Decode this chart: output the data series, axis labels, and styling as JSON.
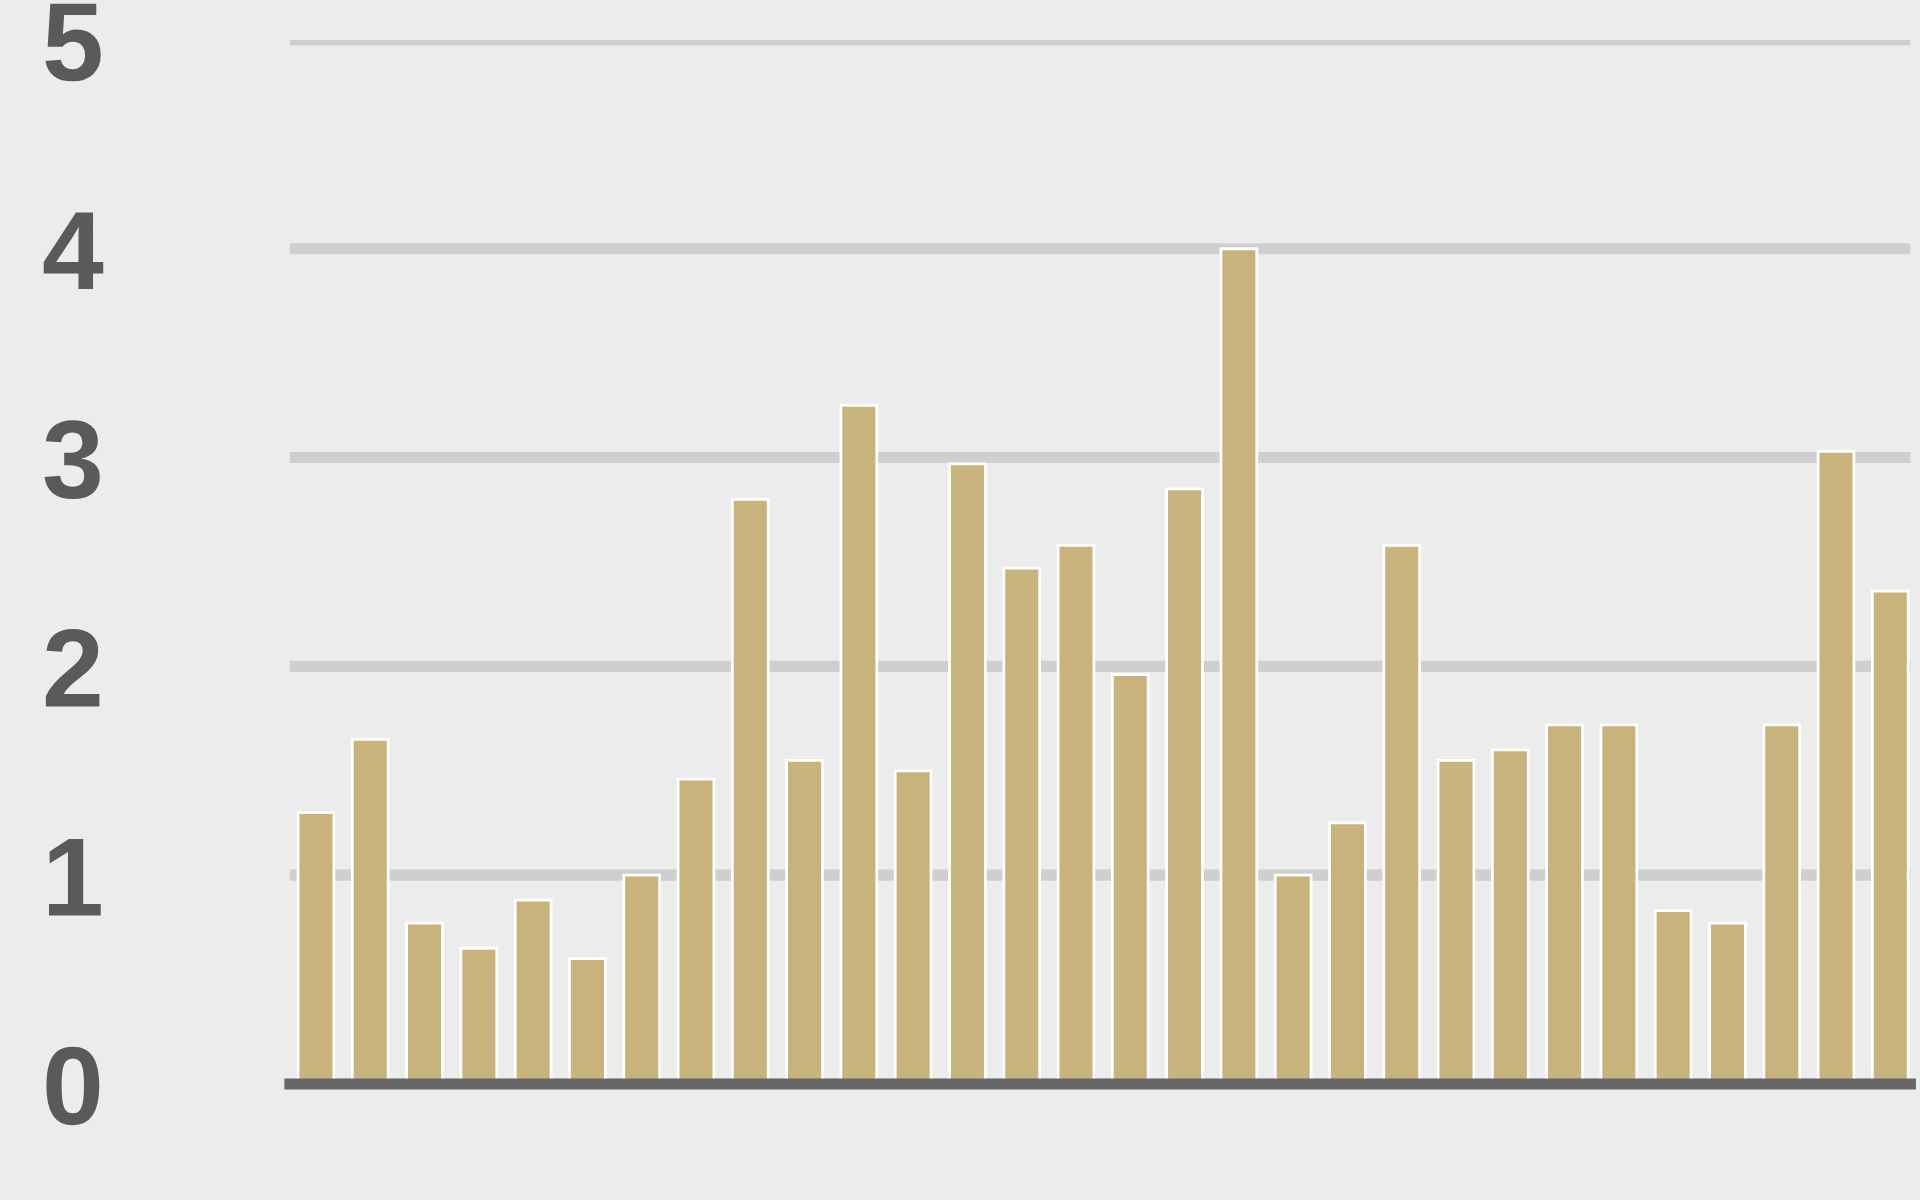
{
  "chart_data": {
    "type": "bar",
    "categories": [
      null,
      null,
      null,
      null,
      null,
      null,
      null,
      null,
      null,
      null,
      null,
      null,
      null,
      null,
      null,
      null,
      null,
      null,
      null,
      null,
      null,
      null,
      null,
      null,
      null,
      null,
      null,
      null,
      null,
      null
    ],
    "values": [
      1.3,
      1.65,
      0.77,
      0.65,
      0.88,
      0.6,
      1.0,
      1.46,
      2.8,
      1.55,
      3.25,
      1.5,
      2.97,
      2.47,
      2.58,
      1.96,
      2.85,
      4.0,
      1.0,
      1.25,
      2.58,
      1.55,
      1.6,
      1.72,
      1.72,
      0.83,
      0.77,
      1.72,
      3.03,
      2.36
    ],
    "color": "#c8b37c",
    "ylim": [
      0,
      5
    ],
    "yticks": [
      0,
      1,
      2,
      3,
      4,
      5
    ],
    "grid": "y",
    "tick_labels": "y"
  }
}
